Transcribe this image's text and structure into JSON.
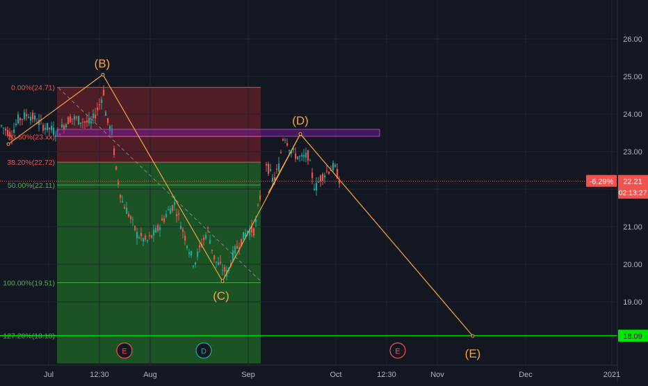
{
  "chart_data": {
    "type": "candlestick",
    "title": "",
    "y_axis": {
      "ticks": [
        "26.00",
        "25.00",
        "24.00",
        "23.00",
        "22.00",
        "21.00",
        "20.00",
        "19.00"
      ],
      "range": [
        17.65,
        26.6
      ]
    },
    "x_axis": {
      "ticks": [
        "Jul",
        "12:30",
        "Aug",
        "Sep",
        "Oct",
        "12:30",
        "Nov",
        "Dec",
        "2021"
      ]
    },
    "price": {
      "last": "22.21",
      "change": "-6.29%",
      "countdown": "02:13:27",
      "level_label": "18.09",
      "last_value": 22.21,
      "level_value": 18.09
    },
    "fibonacci": [
      {
        "label": "0.00%(24.71)",
        "value": 24.71,
        "color": "#ef5350"
      },
      {
        "label": "23.60%(23.xx)",
        "value": 23.4,
        "color": "#ef5350"
      },
      {
        "label": "38.20%(22.72)",
        "value": 22.72,
        "color": "#ef5350"
      },
      {
        "label": "50.00%(22.11)",
        "value": 22.11,
        "color": "#4caf50"
      },
      {
        "label": "100.00%(19.51)",
        "value": 19.51,
        "color": "#4caf50"
      },
      {
        "label": "127.20%(18.10)",
        "value": 18.1,
        "color": "#4caf50"
      }
    ],
    "wave_labels": [
      {
        "label": "(B)",
        "price": 25.05
      },
      {
        "label": "(C)",
        "price": 19.55
      },
      {
        "label": "(D)",
        "price": 23.47
      },
      {
        "label": "(E)",
        "price": 18.09
      }
    ],
    "event_markers": [
      {
        "label": "E",
        "color": "#ef5350"
      },
      {
        "label": "D",
        "color": "#26a69a"
      },
      {
        "label": "E",
        "color": "#ef5350"
      }
    ],
    "colors": {
      "background": "#131722",
      "up": "#26a69a",
      "down": "#ef5350",
      "wave": "#f7a440",
      "fib_red_zone": "#5a1e27",
      "fib_green_zone": "#1d5a25",
      "support_line": "#00e600",
      "resistance_box": "#7b1fa2",
      "price_badge": "#ef5350",
      "level_badge": "#00e600"
    }
  }
}
